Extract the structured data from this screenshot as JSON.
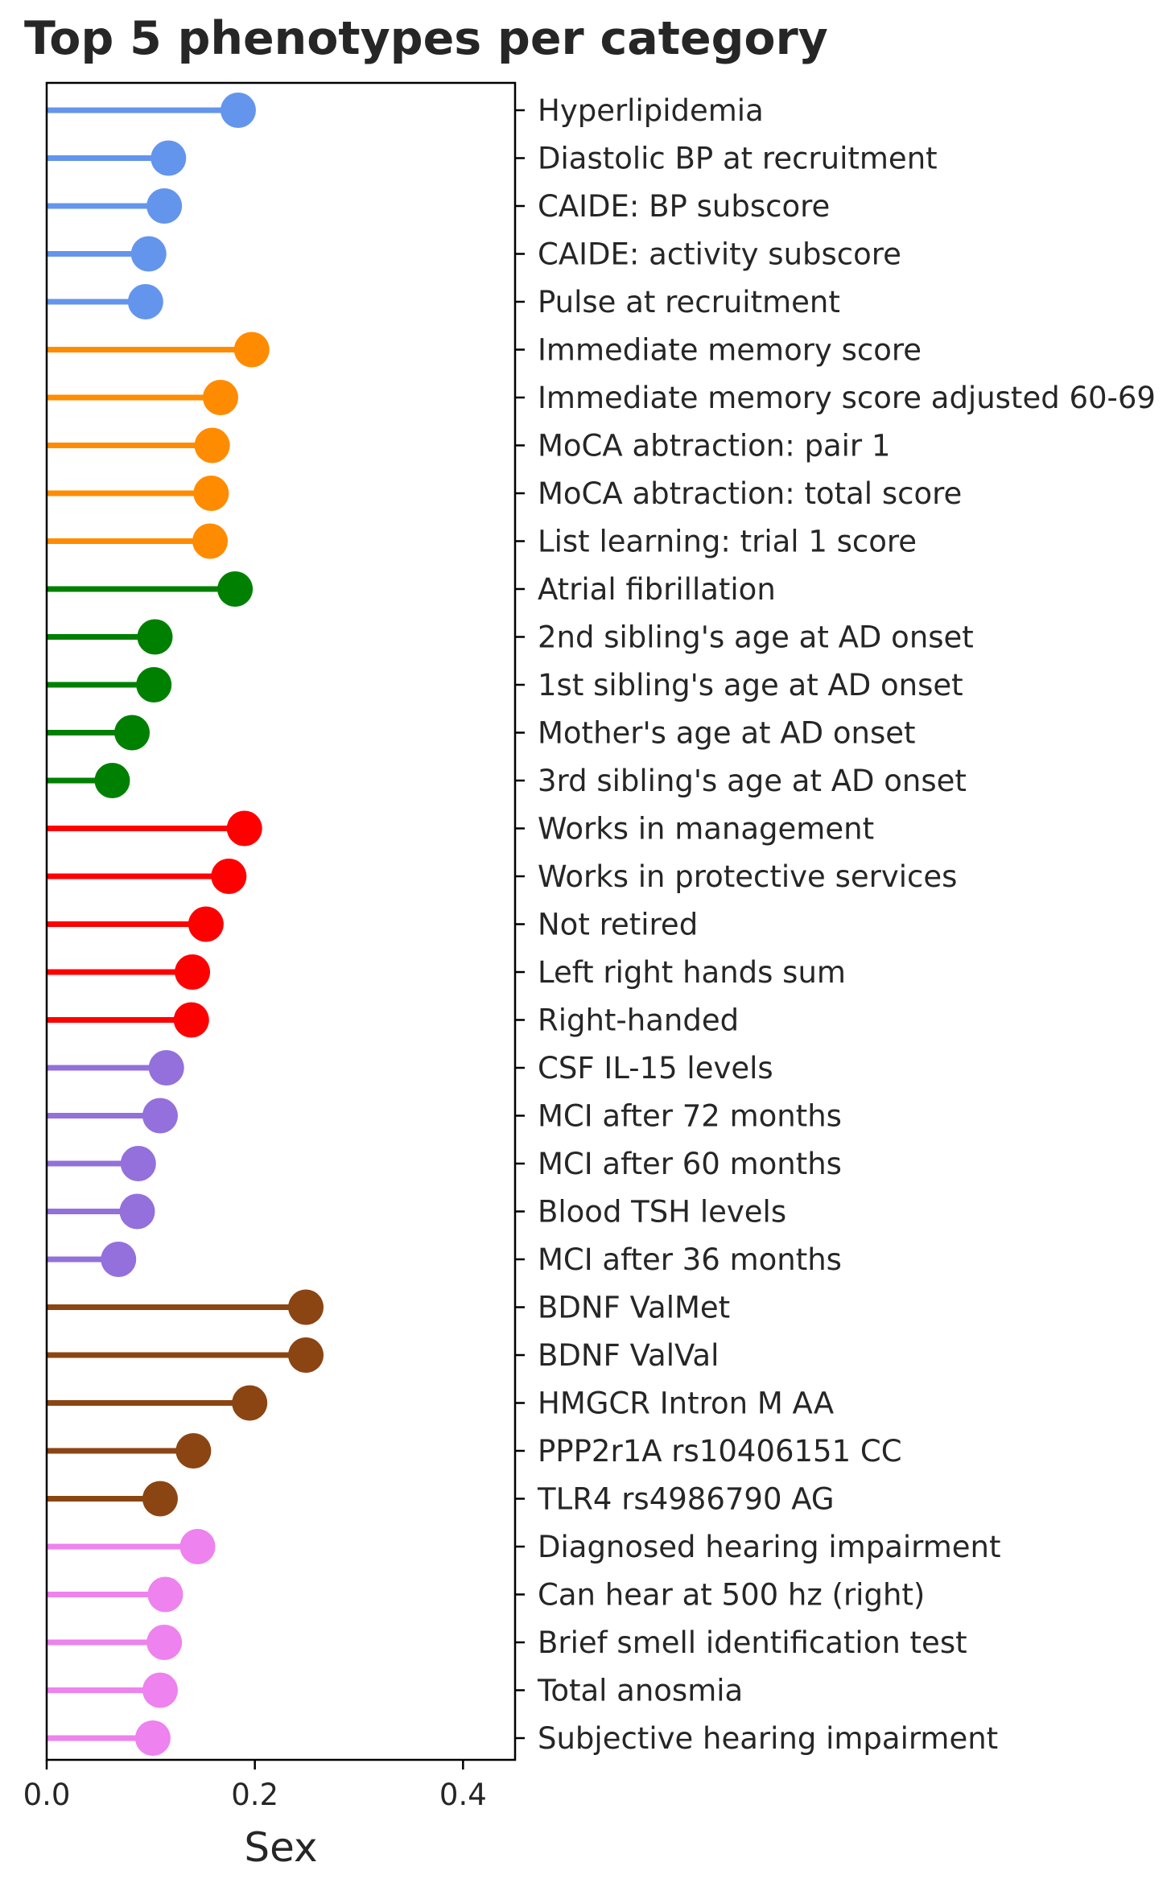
{
  "chart_data": {
    "type": "lollipop",
    "title": "Top 5 phenotypes per category",
    "xlabel": "Sex",
    "ylabel": "",
    "xlim": [
      0,
      0.45
    ],
    "xticks": [
      {
        "value": 0.0,
        "label": "0.0"
      },
      {
        "value": 0.2,
        "label": "0.2"
      },
      {
        "value": 0.4,
        "label": "0.4"
      }
    ],
    "grid": false,
    "categories": [
      {
        "color": "#6495ED",
        "items": [
          {
            "label": "Hyperlipidemia",
            "value": 0.184
          },
          {
            "label": "Diastolic BP at recruitment",
            "value": 0.117
          },
          {
            "label": "CAIDE: BP subscore",
            "value": 0.113
          },
          {
            "label": "CAIDE: activity subscore",
            "value": 0.098
          },
          {
            "label": "Pulse at recruitment",
            "value": 0.095
          }
        ]
      },
      {
        "color": "#FF8C00",
        "items": [
          {
            "label": "Immediate memory score",
            "value": 0.197
          },
          {
            "label": "Immediate memory score adjusted 60-69",
            "value": 0.167
          },
          {
            "label": "MoCA abtraction: pair 1",
            "value": 0.159
          },
          {
            "label": "MoCA abtraction: total score",
            "value": 0.158
          },
          {
            "label": "List learning: trial 1 score",
            "value": 0.157
          }
        ]
      },
      {
        "color": "#008000",
        "items": [
          {
            "label": "Atrial fibrillation",
            "value": 0.181
          },
          {
            "label": "2nd sibling's age at AD onset",
            "value": 0.104
          },
          {
            "label": "1st sibling's age at AD onset",
            "value": 0.103
          },
          {
            "label": "Mother's age at AD onset",
            "value": 0.082
          },
          {
            "label": "3rd sibling's age at AD onset",
            "value": 0.063
          }
        ]
      },
      {
        "color": "#FF0000",
        "items": [
          {
            "label": "Works in management",
            "value": 0.19
          },
          {
            "label": "Works in protective services",
            "value": 0.175
          },
          {
            "label": "Not retired",
            "value": 0.153
          },
          {
            "label": "Left right hands sum",
            "value": 0.14
          },
          {
            "label": "Right-handed",
            "value": 0.139
          }
        ]
      },
      {
        "color": "#9370DB",
        "items": [
          {
            "label": "CSF IL-15 levels",
            "value": 0.115
          },
          {
            "label": "MCI after 72 months",
            "value": 0.109
          },
          {
            "label": "MCI after 60 months",
            "value": 0.088
          },
          {
            "label": "Blood TSH levels",
            "value": 0.087
          },
          {
            "label": "MCI after 36 months",
            "value": 0.069
          }
        ]
      },
      {
        "color": "#8B4513",
        "items": [
          {
            "label": "BDNF ValMet",
            "value": 0.249
          },
          {
            "label": "BDNF ValVal",
            "value": 0.249
          },
          {
            "label": "HMGCR Intron M AA",
            "value": 0.195
          },
          {
            "label": "PPP2r1A rs10406151 CC",
            "value": 0.141
          },
          {
            "label": "TLR4 rs4986790 AG",
            "value": 0.109
          }
        ]
      },
      {
        "color": "#EE82EE",
        "items": [
          {
            "label": "Diagnosed hearing impairment",
            "value": 0.145
          },
          {
            "label": "Can hear at 500 hz (right)",
            "value": 0.114
          },
          {
            "label": "Brief smell identification test",
            "value": 0.113
          },
          {
            "label": "Total anosmia",
            "value": 0.109
          },
          {
            "label": "Subjective hearing impairment",
            "value": 0.102
          }
        ]
      }
    ]
  }
}
